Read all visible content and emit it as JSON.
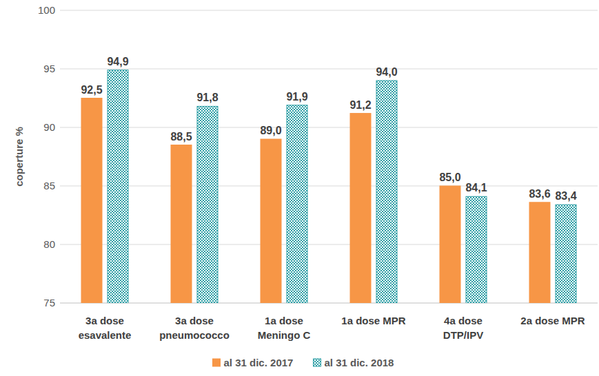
{
  "chart_data": {
    "type": "bar",
    "y_label": "coperture %",
    "categories": [
      "3a dose\nesavalente",
      "3a dose\npneumococco",
      "1a dose\nMeningo C",
      "1a dose MPR",
      "4a dose\nDTP/IPV",
      "2a dose MPR"
    ],
    "series": [
      {
        "name": "al 31 dic. 2017",
        "color": "#F79646",
        "values": [
          92.5,
          88.5,
          89.0,
          91.2,
          85.0,
          83.6
        ],
        "value_labels": [
          "92,5",
          "88,5",
          "89,0",
          "91,2",
          "85,0",
          "83,6"
        ]
      },
      {
        "name": "al 31 dic. 2018",
        "color": "#2E9FA6",
        "values": [
          94.9,
          91.8,
          91.9,
          94.0,
          84.1,
          83.4
        ],
        "value_labels": [
          "94,9",
          "91,8",
          "91,9",
          "94,0",
          "84,1",
          "83,4"
        ]
      }
    ],
    "ylim": [
      75,
      100
    ],
    "yticks": [
      75,
      80,
      85,
      90,
      95,
      100
    ],
    "grid": true,
    "legend": "bottom",
    "data_labels": true
  }
}
